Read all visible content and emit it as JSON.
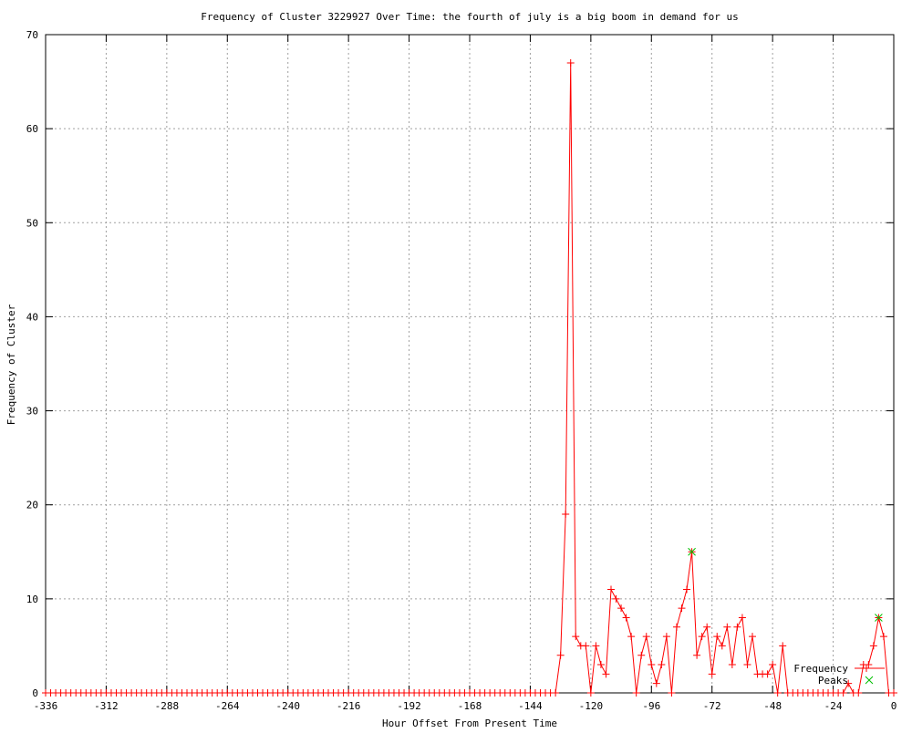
{
  "chart_data": {
    "type": "line",
    "title": "Frequency of Cluster 3229927 Over Time: the fourth of july is a big boom in demand for us",
    "xlabel": "Hour Offset From Present Time",
    "ylabel": "Frequency of Cluster",
    "xlim": [
      -336,
      0
    ],
    "ylim": [
      0,
      70
    ],
    "xticks": [
      -336,
      -312,
      -288,
      -264,
      -240,
      -216,
      -192,
      -168,
      -144,
      -120,
      -96,
      -72,
      -48,
      -24,
      0
    ],
    "yticks": [
      0,
      10,
      20,
      30,
      40,
      50,
      60,
      70
    ],
    "grid": true,
    "legend_position": "bottom-right",
    "series": [
      {
        "name": "Frequency",
        "color": "#ff0000",
        "x": [
          -336,
          -334,
          -332,
          -330,
          -328,
          -326,
          -324,
          -322,
          -320,
          -318,
          -316,
          -314,
          -312,
          -310,
          -308,
          -306,
          -304,
          -302,
          -300,
          -298,
          -296,
          -294,
          -292,
          -290,
          -288,
          -286,
          -284,
          -282,
          -280,
          -278,
          -276,
          -274,
          -272,
          -270,
          -268,
          -266,
          -264,
          -262,
          -260,
          -258,
          -256,
          -254,
          -252,
          -250,
          -248,
          -246,
          -244,
          -242,
          -240,
          -238,
          -236,
          -234,
          -232,
          -230,
          -228,
          -226,
          -224,
          -222,
          -220,
          -218,
          -216,
          -214,
          -212,
          -210,
          -208,
          -206,
          -204,
          -202,
          -200,
          -198,
          -196,
          -194,
          -192,
          -190,
          -188,
          -186,
          -184,
          -182,
          -180,
          -178,
          -176,
          -174,
          -172,
          -170,
          -168,
          -166,
          -164,
          -162,
          -160,
          -158,
          -156,
          -154,
          -152,
          -150,
          -148,
          -146,
          -144,
          -142,
          -140,
          -138,
          -136,
          -134,
          -132,
          -130,
          -128,
          -126,
          -124,
          -122,
          -120,
          -118,
          -116,
          -114,
          -112,
          -110,
          -108,
          -106,
          -104,
          -102,
          -100,
          -98,
          -96,
          -94,
          -92,
          -90,
          -88,
          -86,
          -84,
          -82,
          -80,
          -78,
          -76,
          -74,
          -72,
          -70,
          -68,
          -66,
          -64,
          -62,
          -60,
          -58,
          -56,
          -54,
          -52,
          -50,
          -48,
          -46,
          -44,
          -42,
          -40,
          -38,
          -36,
          -34,
          -32,
          -30,
          -28,
          -26,
          -24,
          -22,
          -20,
          -18,
          -16,
          -14,
          -12,
          -10,
          -8,
          -6,
          -4,
          -2,
          0
        ],
        "y": [
          0,
          0,
          0,
          0,
          0,
          0,
          0,
          0,
          0,
          0,
          0,
          0,
          0,
          0,
          0,
          0,
          0,
          0,
          0,
          0,
          0,
          0,
          0,
          0,
          0,
          0,
          0,
          0,
          0,
          0,
          0,
          0,
          0,
          0,
          0,
          0,
          0,
          0,
          0,
          0,
          0,
          0,
          0,
          0,
          0,
          0,
          0,
          0,
          0,
          0,
          0,
          0,
          0,
          0,
          0,
          0,
          0,
          0,
          0,
          0,
          0,
          0,
          0,
          0,
          0,
          0,
          0,
          0,
          0,
          0,
          0,
          0,
          0,
          0,
          0,
          0,
          0,
          0,
          0,
          0,
          0,
          0,
          0,
          0,
          0,
          0,
          0,
          0,
          0,
          0,
          0,
          0,
          0,
          0,
          0,
          0,
          0,
          0,
          0,
          0,
          0,
          0,
          4,
          19,
          67,
          6,
          5,
          5,
          0,
          5,
          3,
          2,
          11,
          10,
          9,
          8,
          6,
          0,
          4,
          6,
          3,
          1,
          3,
          6,
          0,
          7,
          9,
          11,
          15,
          4,
          6,
          7,
          2,
          6,
          5,
          7,
          3,
          7,
          8,
          3,
          6,
          2,
          2,
          2,
          3,
          0,
          5,
          0,
          0,
          0,
          0,
          0,
          0,
          0,
          0,
          0,
          0,
          0,
          0,
          1,
          0,
          0,
          3,
          3,
          5,
          8,
          6,
          0,
          0
        ]
      },
      {
        "name": "Peaks",
        "color": "#00c000",
        "x": [
          -80,
          -6
        ],
        "y": [
          15,
          8
        ]
      }
    ]
  }
}
